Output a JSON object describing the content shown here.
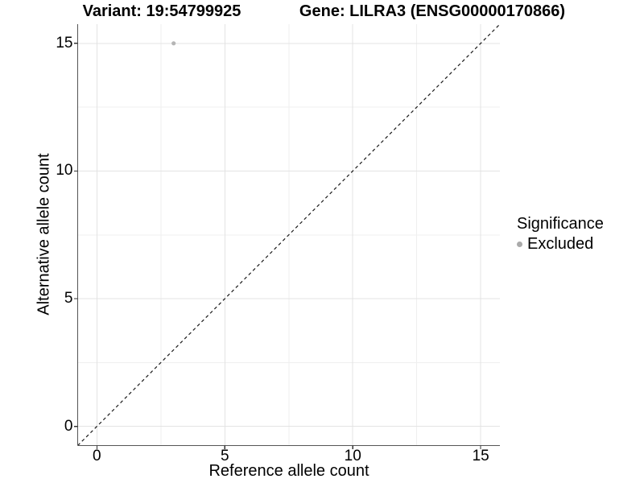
{
  "titles": {
    "variant": "Variant: 19:54799925",
    "gene": "Gene: LILRA3 (ENSG00000170866)"
  },
  "chart_data": {
    "type": "scatter",
    "xlabel": "Reference allele count",
    "ylabel": "Alternative allele count",
    "xlim": [
      -0.75,
      15.75
    ],
    "ylim": [
      -0.75,
      15.75
    ],
    "xticks": [
      0,
      5,
      10,
      15
    ],
    "yticks": [
      0,
      5,
      10,
      15
    ],
    "xticks_minor": [
      2.5,
      7.5,
      12.5
    ],
    "yticks_minor": [
      2.5,
      7.5,
      12.5
    ],
    "grid": "major+minor",
    "points": [
      {
        "x": 3,
        "y": 15,
        "series": "Excluded"
      }
    ],
    "identity_line": {
      "style": "dashed",
      "x1": -0.75,
      "y1": -0.75,
      "x2": 15.75,
      "y2": 15.75
    },
    "legend": {
      "title": "Significance",
      "position": "right",
      "items": [
        {
          "label": "Excluded",
          "color": "#aaaaaa"
        }
      ]
    }
  },
  "colors": {
    "background": "#ffffff",
    "grid_major": "#e3e3e3",
    "grid_minor": "#efefef",
    "axis_line": "#555555",
    "tick_mark": "#333333",
    "text": "#000000",
    "point": "#b5b5b5",
    "legend_key": "#aaaaaa",
    "ref_line": "#1a1a1a"
  }
}
